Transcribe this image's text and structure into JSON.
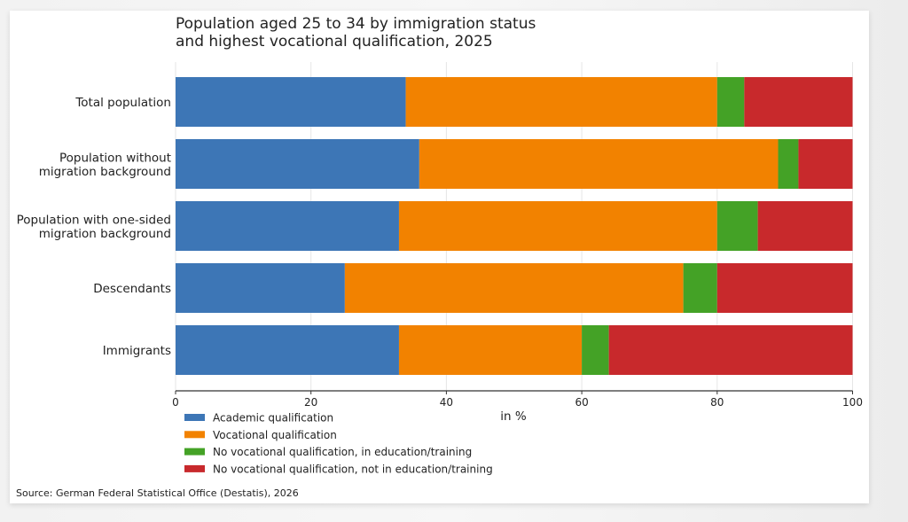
{
  "chart_data": {
    "type": "bar",
    "orientation": "horizontal",
    "stacked": true,
    "title": "Population aged 25 to 34 by immigration status\nand highest vocational qualification, 2025",
    "title_lines": [
      "Population aged 25 to 34 by immigration status",
      "and highest vocational qualification, 2025"
    ],
    "categories": [
      [
        "Total population"
      ],
      [
        "Population without",
        "migration background"
      ],
      [
        "Population with one-sided",
        "migration background"
      ],
      [
        "Descendants"
      ],
      [
        "Immigrants"
      ]
    ],
    "series": [
      {
        "name": "Academic qualification",
        "color": "#3d76b6",
        "values": [
          34,
          36,
          33,
          25,
          33
        ]
      },
      {
        "name": "Vocational qualification",
        "color": "#f28200",
        "values": [
          46,
          53,
          47,
          50,
          27
        ]
      },
      {
        "name": "No vocational qualification, in education/training",
        "color": "#44a226",
        "values": [
          4,
          3,
          6,
          5,
          4
        ]
      },
      {
        "name": "No vocational qualification, not in education/training",
        "color": "#c8292c",
        "values": [
          16,
          8,
          14,
          20,
          36
        ]
      }
    ],
    "xlabel": "in %",
    "ylabel": "",
    "xlim": [
      0,
      100
    ],
    "xticks": [
      0,
      20,
      40,
      60,
      80,
      100
    ],
    "grid": true,
    "legend_position": "bottom-left"
  },
  "source": "Source: German Federal Statistical Office (Destatis), 2026"
}
